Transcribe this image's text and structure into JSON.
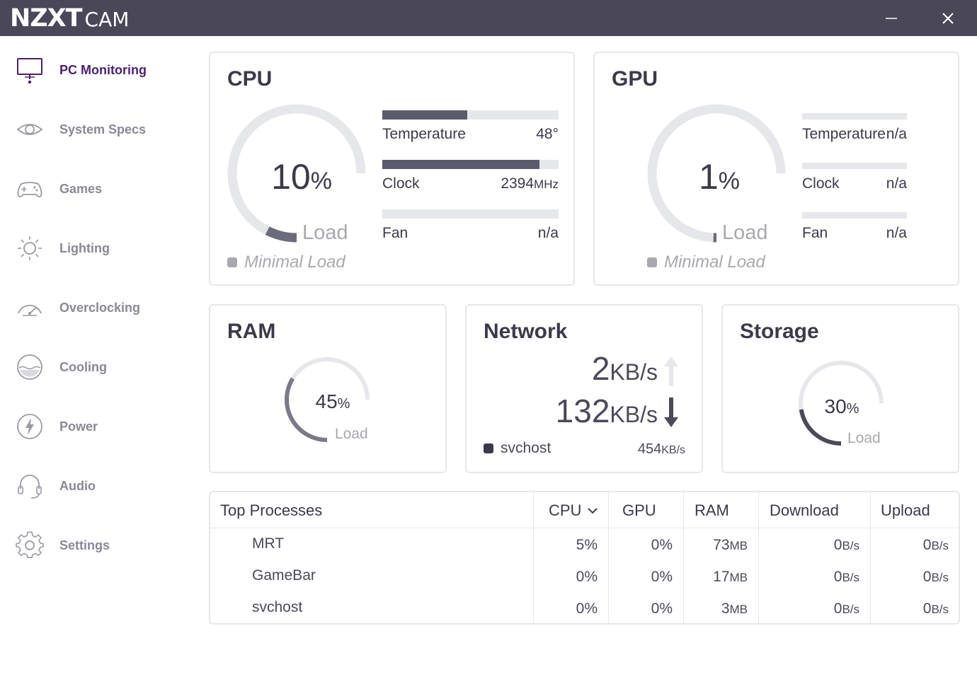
{
  "app": {
    "brand": "NZXT",
    "product": "CAM"
  },
  "window": {
    "minimize_icon": "minimize-icon",
    "close_icon": "close-icon"
  },
  "sidebar": {
    "items": [
      {
        "label": "PC Monitoring",
        "icon": "monitor-icon",
        "active": true
      },
      {
        "label": "System Specs",
        "icon": "eye-icon"
      },
      {
        "label": "Games",
        "icon": "gamepad-icon"
      },
      {
        "label": "Lighting",
        "icon": "sun-icon"
      },
      {
        "label": "Overclocking",
        "icon": "speedometer-icon"
      },
      {
        "label": "Cooling",
        "icon": "cooling-icon"
      },
      {
        "label": "Power",
        "icon": "lightning-icon"
      },
      {
        "label": "Audio",
        "icon": "headset-icon"
      },
      {
        "label": "Settings",
        "icon": "gear-icon"
      }
    ]
  },
  "colors": {
    "accent": "#4b1f72",
    "titlebar": "#4a4759",
    "bar_fill": "#5b5b6e",
    "track": "#e6e7ea",
    "muted": "#a8a9ae"
  },
  "cpu": {
    "title": "CPU",
    "load_value": "10",
    "load_unit": "%",
    "load_fraction": 0.1,
    "load_label": "Load",
    "status": "Minimal Load",
    "metrics": [
      {
        "label": "Temperature",
        "value": "48°",
        "unit": "",
        "fraction": 0.48
      },
      {
        "label": "Clock",
        "value": "2394",
        "unit": "MHz",
        "fraction": 0.89
      },
      {
        "label": "Fan",
        "value": "n/a",
        "unit": "",
        "fraction": 0
      }
    ]
  },
  "gpu": {
    "title": "GPU",
    "load_value": "1",
    "load_unit": "%",
    "load_fraction": 0.01,
    "load_label": "Load",
    "status": "Minimal Load",
    "metrics": [
      {
        "label": "Temperature",
        "value": "n/a",
        "unit": "",
        "fraction": 0
      },
      {
        "label": "Clock",
        "value": "n/a",
        "unit": "",
        "fraction": 0
      },
      {
        "label": "Fan",
        "value": "n/a",
        "unit": "",
        "fraction": 0
      }
    ]
  },
  "ram": {
    "title": "RAM",
    "load_value": "45",
    "load_unit": "%",
    "load_fraction": 0.45,
    "load_label": "Load"
  },
  "network": {
    "title": "Network",
    "upload_value": "2",
    "upload_unit": "KB/s",
    "download_value": "132",
    "download_unit": "KB/s",
    "top_process": "svchost",
    "top_value": "454",
    "top_unit": "KB/s"
  },
  "storage": {
    "title": "Storage",
    "load_value": "30",
    "load_unit": "%",
    "load_fraction": 0.3,
    "load_label": "Load"
  },
  "processes": {
    "title": "Top Processes",
    "headers": {
      "cpu": "CPU",
      "gpu": "GPU",
      "ram": "RAM",
      "download": "Download",
      "upload": "Upload"
    },
    "sort_icon": "chevron-down-icon",
    "rows": [
      {
        "name": "MRT",
        "cpu": "5%",
        "gpu": "0%",
        "ram_value": "73",
        "ram_unit": "MB",
        "download_value": "0",
        "download_unit": "B/s",
        "upload_value": "0",
        "upload_unit": "B/s"
      },
      {
        "name": "GameBar",
        "cpu": "0%",
        "gpu": "0%",
        "ram_value": "17",
        "ram_unit": "MB",
        "download_value": "0",
        "download_unit": "B/s",
        "upload_value": "0",
        "upload_unit": "B/s"
      },
      {
        "name": "svchost",
        "cpu": "0%",
        "gpu": "0%",
        "ram_value": "3",
        "ram_unit": "MB",
        "download_value": "0",
        "download_unit": "B/s",
        "upload_value": "0",
        "upload_unit": "B/s"
      }
    ]
  }
}
